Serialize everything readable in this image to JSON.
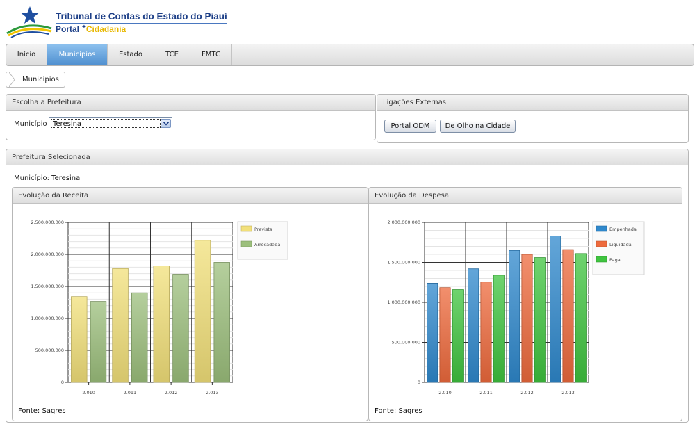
{
  "logo": {
    "title": "Tribunal de Contas do Estado do Piauí",
    "portal": "Portal",
    "plus": "+",
    "cidadania": "Cidadania"
  },
  "nav": {
    "tabs": [
      {
        "label": "Início"
      },
      {
        "label": "Municípios"
      },
      {
        "label": "Estado"
      },
      {
        "label": "TCE"
      },
      {
        "label": "FMTC"
      }
    ]
  },
  "breadcrumb": {
    "label": "Municípios"
  },
  "escolha": {
    "title": "Escolha a Prefeitura",
    "field_label": "Município",
    "selected": "Teresina"
  },
  "ligacoes": {
    "title": "Ligações Externas",
    "buttons": [
      "Portal ODM",
      "De Olho na Cidade"
    ]
  },
  "prefeitura": {
    "title": "Prefeitura Selecionada",
    "municipio_label": "Município:",
    "municipio_value": "Teresina"
  },
  "colors": {
    "prevista": "#f2e07a",
    "arrecadada": "#9cbf7c",
    "empenhada": "#2f88cc",
    "liquidada": "#ee6a3c",
    "paga": "#3fc43f"
  },
  "chart_data": [
    {
      "type": "bar",
      "title": "Evolução da Receita",
      "categories": [
        "2.010",
        "2.011",
        "2.012",
        "2.013"
      ],
      "series": [
        {
          "name": "Prevista",
          "color_key": "prevista",
          "values": [
            1340000000,
            1780000000,
            1820000000,
            2220000000
          ]
        },
        {
          "name": "Arrecadada",
          "color_key": "arrecadada",
          "values": [
            1265000000,
            1400000000,
            1690000000,
            1875000000
          ]
        }
      ],
      "ylim": [
        0,
        2500000000
      ],
      "yticks": [
        0,
        500000000,
        1000000000,
        1500000000,
        2000000000,
        2500000000
      ],
      "ytick_labels": [
        "0",
        "500.000.000",
        "1.000.000.000",
        "1.500.000.000",
        "2.000.000.000",
        "2.500.000.000"
      ],
      "legend": "top-right",
      "grid": true,
      "footer": "Fonte: Sagres"
    },
    {
      "type": "bar",
      "title": "Evolução da Despesa",
      "categories": [
        "2.010",
        "2.011",
        "2.012",
        "2.013"
      ],
      "series": [
        {
          "name": "Empenhada",
          "color_key": "empenhada",
          "values": [
            1240000000,
            1420000000,
            1650000000,
            1830000000
          ]
        },
        {
          "name": "Liquidada",
          "color_key": "liquidada",
          "values": [
            1185000000,
            1255000000,
            1600000000,
            1660000000
          ]
        },
        {
          "name": "Paga",
          "color_key": "paga",
          "values": [
            1160000000,
            1340000000,
            1560000000,
            1610000000
          ]
        }
      ],
      "ylim": [
        0,
        2000000000
      ],
      "yticks": [
        0,
        500000000,
        1000000000,
        1500000000,
        2000000000
      ],
      "ytick_labels": [
        "0",
        "500.000.000",
        "1.000.000.000",
        "1.500.000.000",
        "2.000.000.000"
      ],
      "legend": "top-right",
      "grid": true,
      "footer": "Fonte: Sagres"
    }
  ]
}
